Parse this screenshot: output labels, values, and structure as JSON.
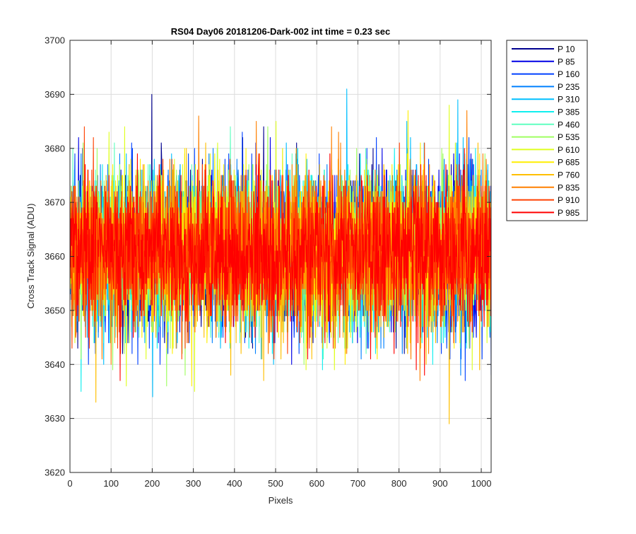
{
  "chart_data": {
    "type": "line",
    "title": "RS04 Day06 20181206-Dark-002 int time = 0.23 sec",
    "xlabel": "Pixels",
    "ylabel": "Cross Track Signal (ADU)",
    "xlim": [
      0,
      1024
    ],
    "ylim": [
      3620,
      3700
    ],
    "xticks": [
      0,
      100,
      200,
      300,
      400,
      500,
      600,
      700,
      800,
      900,
      1000
    ],
    "yticks": [
      3620,
      3630,
      3640,
      3650,
      3660,
      3670,
      3680,
      3690,
      3700
    ],
    "grid": true,
    "legend_position": "outside-top-right",
    "points_per_series": 1024,
    "noise_summary": {
      "mean": 3661,
      "typical_min": 3643,
      "typical_max": 3680
    },
    "series": [
      {
        "name": "P 10",
        "color": "#00008f"
      },
      {
        "name": "P 85",
        "color": "#0000e6"
      },
      {
        "name": "P 160",
        "color": "#0040ff"
      },
      {
        "name": "P 235",
        "color": "#0080ff"
      },
      {
        "name": "P 310",
        "color": "#00bfff"
      },
      {
        "name": "P 385",
        "color": "#10efef"
      },
      {
        "name": "P 460",
        "color": "#60ffc0"
      },
      {
        "name": "P 535",
        "color": "#9fff60"
      },
      {
        "name": "P 610",
        "color": "#dfff20"
      },
      {
        "name": "P 685",
        "color": "#ffef00"
      },
      {
        "name": "P 760",
        "color": "#ffbf00"
      },
      {
        "name": "P 835",
        "color": "#ff8000"
      },
      {
        "name": "P 910",
        "color": "#ff4000"
      },
      {
        "name": "P 985",
        "color": "#ff0000"
      }
    ],
    "annotated_peaks": [
      {
        "series": "P 10",
        "x": 198,
        "y": 3690
      },
      {
        "series": "P 310",
        "x": 672,
        "y": 3691
      },
      {
        "series": "P 310",
        "x": 200,
        "y": 3634
      },
      {
        "series": "P 760",
        "x": 921,
        "y": 3629
      },
      {
        "series": "P 760",
        "x": 62,
        "y": 3633
      },
      {
        "series": "P 310",
        "x": 942,
        "y": 3689
      }
    ]
  }
}
